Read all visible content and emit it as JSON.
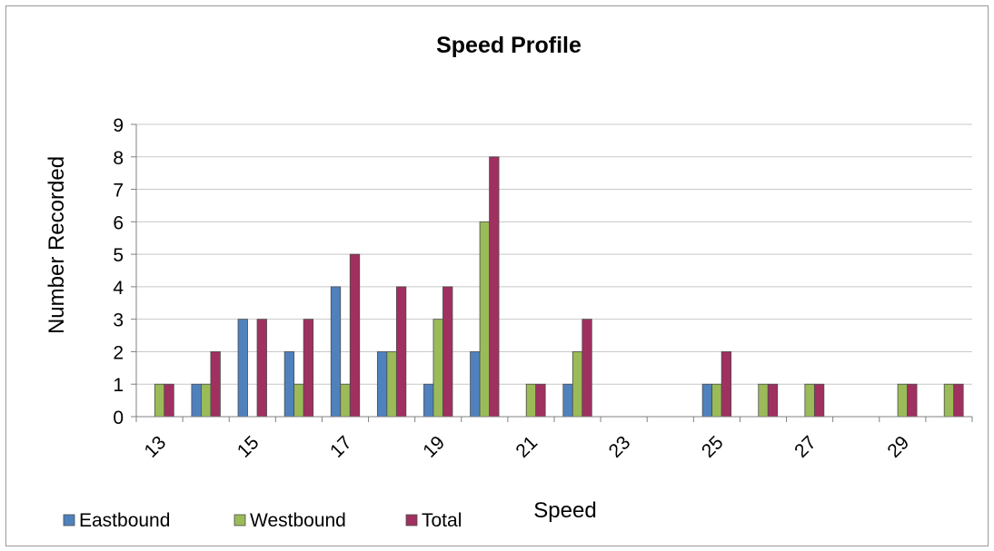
{
  "chart_data": {
    "type": "bar",
    "title": "Speed Profile",
    "xlabel": "Speed",
    "ylabel": "Number Recorded",
    "categories": [
      "13",
      "14",
      "15",
      "16",
      "17",
      "18",
      "19",
      "20",
      "21",
      "22",
      "23",
      "24",
      "25",
      "26",
      "27",
      "28",
      "29",
      "30"
    ],
    "x_tick_labels": [
      "13",
      "15",
      "17",
      "19",
      "21",
      "23",
      "25",
      "27",
      "29"
    ],
    "ylim": [
      0,
      9
    ],
    "y_ticks": [
      "0",
      "1",
      "2",
      "3",
      "4",
      "5",
      "6",
      "7",
      "8",
      "9"
    ],
    "grid": true,
    "legend_position": "bottom-left",
    "series": [
      {
        "name": "Eastbound",
        "color": "#4f81bd",
        "values": [
          0,
          1,
          3,
          2,
          4,
          2,
          1,
          2,
          0,
          1,
          0,
          0,
          1,
          0,
          0,
          0,
          0,
          0
        ]
      },
      {
        "name": "Westbound",
        "color": "#9bbb59",
        "values": [
          1,
          1,
          0,
          1,
          1,
          2,
          3,
          6,
          1,
          2,
          0,
          0,
          1,
          1,
          1,
          0,
          1,
          1
        ]
      },
      {
        "name": "Total",
        "color": "#a0305f",
        "values": [
          1,
          2,
          3,
          3,
          5,
          4,
          4,
          8,
          1,
          3,
          0,
          0,
          2,
          1,
          1,
          0,
          1,
          1
        ]
      }
    ]
  }
}
